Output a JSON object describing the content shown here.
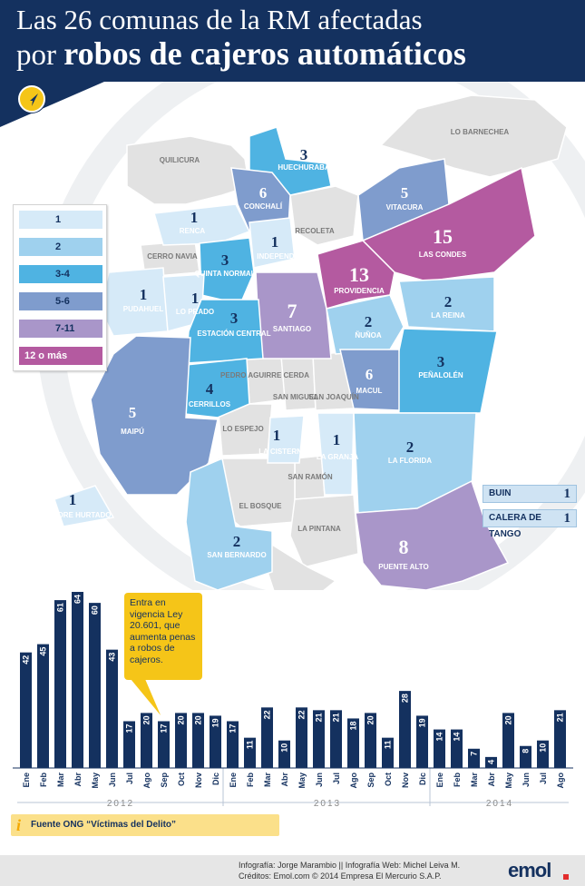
{
  "header": {
    "title_line1": "Las 26 comunas de la RM afectadas",
    "title_line2_prefix": "por",
    "title_line2_bold": "robos de cajeros automáticos"
  },
  "icons": {
    "compass": "compass-icon",
    "info": "info-icon"
  },
  "legend": {
    "items": [
      {
        "label": "1",
        "color": "#d6eaf8"
      },
      {
        "label": "2",
        "color": "#9fd1ee"
      },
      {
        "label": "3-4",
        "color": "#4fb3e2"
      },
      {
        "label": "5-6",
        "color": "#7f9ccd"
      },
      {
        "label": "7-11",
        "color": "#a996c9"
      },
      {
        "label": "12 o más",
        "color": "#b45aa0"
      }
    ]
  },
  "colors": {
    "brand_navy": "#14315f",
    "accent_yellow": "#f5c518",
    "no_data_gray": "#e2e2e2",
    "bar": "#14315f"
  },
  "map": {
    "communes": [
      {
        "name": "QUILICURA",
        "value": ""
      },
      {
        "name": "HUECHURABA",
        "value": "3"
      },
      {
        "name": "LO BARNECHEA",
        "value": ""
      },
      {
        "name": "CONCHALÍ",
        "value": "6"
      },
      {
        "name": "RENCA",
        "value": "1"
      },
      {
        "name": "RECOLETA",
        "value": ""
      },
      {
        "name": "VITACURA",
        "value": "5"
      },
      {
        "name": "INDEPEND.",
        "value": "1"
      },
      {
        "name": "CERRO NAVIA",
        "value": ""
      },
      {
        "name": "QUINTA NORMAL",
        "value": "3"
      },
      {
        "name": "LAS CONDES",
        "value": "15"
      },
      {
        "name": "PROVIDENCIA",
        "value": "13"
      },
      {
        "name": "PUDAHUEL",
        "value": "1"
      },
      {
        "name": "LO PRADO",
        "value": "1"
      },
      {
        "name": "SANTIAGO",
        "value": "7"
      },
      {
        "name": "LA REINA",
        "value": "2"
      },
      {
        "name": "ESTACIÓN CENTRAL",
        "value": "3"
      },
      {
        "name": "ÑUÑOA",
        "value": "2"
      },
      {
        "name": "PEDRO AGUIRRE CERDA",
        "value": ""
      },
      {
        "name": "PEÑALOLÉN",
        "value": "3"
      },
      {
        "name": "MACUL",
        "value": "6"
      },
      {
        "name": "CERRILLOS",
        "value": "4"
      },
      {
        "name": "SAN MIGUEL",
        "value": ""
      },
      {
        "name": "SAN JOAQUÍN",
        "value": ""
      },
      {
        "name": "MAIPÚ",
        "value": "5"
      },
      {
        "name": "LO ESPEJO",
        "value": ""
      },
      {
        "name": "LA CISTERNA",
        "value": "1"
      },
      {
        "name": "LA GRANJA",
        "value": "1"
      },
      {
        "name": "LA FLORIDA",
        "value": "2"
      },
      {
        "name": "SAN RAMÓN",
        "value": ""
      },
      {
        "name": "PADRE HURTADO",
        "value": "1"
      },
      {
        "name": "EL BOSQUE",
        "value": ""
      },
      {
        "name": "LA PINTANA",
        "value": ""
      },
      {
        "name": "SAN BERNARDO",
        "value": "2"
      },
      {
        "name": "PUENTE ALTO",
        "value": "8"
      }
    ],
    "side_communes": [
      {
        "name": "BUIN",
        "value": "1"
      },
      {
        "name": "CALERA DE TANGO",
        "value": "1"
      }
    ]
  },
  "callout": {
    "text": "Entra en vigencia Ley 20.601, que aumenta penas a robos de cajeros."
  },
  "chart_data": {
    "type": "bar",
    "title": "",
    "xlabel": "",
    "ylabel": "",
    "ylim": [
      0,
      64
    ],
    "grid": false,
    "groups": [
      {
        "year": "2012",
        "months": [
          "Ene",
          "Feb",
          "Mar",
          "Abr",
          "May",
          "Jun",
          "Jul",
          "Ago",
          "Sep",
          "Oct",
          "Nov",
          "Dic"
        ],
        "values": [
          42,
          45,
          61,
          64,
          60,
          43,
          17,
          20,
          17,
          20,
          20,
          19
        ]
      },
      {
        "year": "2013",
        "months": [
          "Ene",
          "Feb",
          "Mar",
          "Abr",
          "May",
          "Jun",
          "Jul",
          "Ago",
          "Sep",
          "Oct",
          "Nov",
          "Dic"
        ],
        "values": [
          17,
          11,
          22,
          10,
          22,
          21,
          21,
          18,
          20,
          11,
          28,
          19
        ]
      },
      {
        "year": "2014",
        "months": [
          "Ene",
          "Feb",
          "Mar",
          "Abr",
          "May",
          "Jun",
          "Jul",
          "Ago"
        ],
        "values": [
          14,
          14,
          7,
          4,
          20,
          8,
          10,
          21
        ]
      }
    ]
  },
  "source": {
    "text": "Fuente ONG “Víctimas del Delito”"
  },
  "footer": {
    "credit_line1": "Infografía: Jorge Marambio || Infografía Web: Michel Leiva M.",
    "credit_line2": "Créditos: Emol.com  ©  2014 Empresa El Mercurio S.A.P.",
    "logo": "emol"
  }
}
